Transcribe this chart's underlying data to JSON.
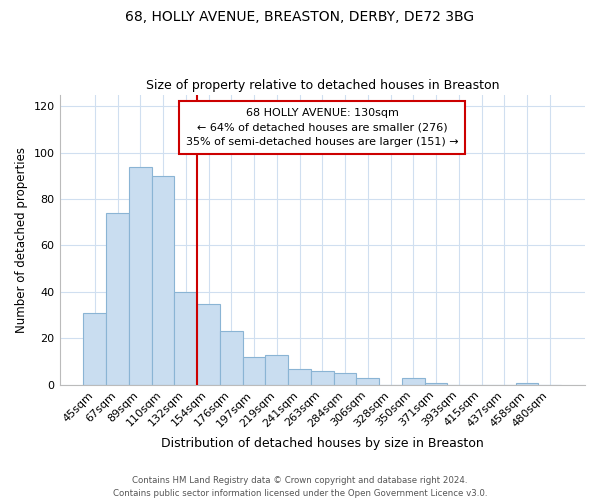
{
  "title": "68, HOLLY AVENUE, BREASTON, DERBY, DE72 3BG",
  "subtitle": "Size of property relative to detached houses in Breaston",
  "xlabel": "Distribution of detached houses by size in Breaston",
  "ylabel": "Number of detached properties",
  "bar_labels": [
    "45sqm",
    "67sqm",
    "89sqm",
    "110sqm",
    "132sqm",
    "154sqm",
    "176sqm",
    "197sqm",
    "219sqm",
    "241sqm",
    "263sqm",
    "284sqm",
    "306sqm",
    "328sqm",
    "350sqm",
    "371sqm",
    "393sqm",
    "415sqm",
    "437sqm",
    "458sqm",
    "480sqm"
  ],
  "bar_values": [
    31,
    74,
    94,
    90,
    40,
    35,
    23,
    12,
    13,
    7,
    6,
    5,
    3,
    0,
    3,
    1,
    0,
    0,
    0,
    1,
    0
  ],
  "bar_color": "#c9ddf0",
  "bar_edge_color": "#8ab4d4",
  "vline_color": "#cc0000",
  "ylim": [
    0,
    125
  ],
  "yticks": [
    0,
    20,
    40,
    60,
    80,
    100,
    120
  ],
  "annotation_title": "68 HOLLY AVENUE: 130sqm",
  "annotation_line1": "← 64% of detached houses are smaller (276)",
  "annotation_line2": "35% of semi-detached houses are larger (151) →",
  "annotation_box_color": "#ffffff",
  "annotation_box_edge": "#cc0000",
  "footer_line1": "Contains HM Land Registry data © Crown copyright and database right 2024.",
  "footer_line2": "Contains public sector information licensed under the Open Government Licence v3.0.",
  "background_color": "#ffffff",
  "grid_color": "#d0dff0"
}
